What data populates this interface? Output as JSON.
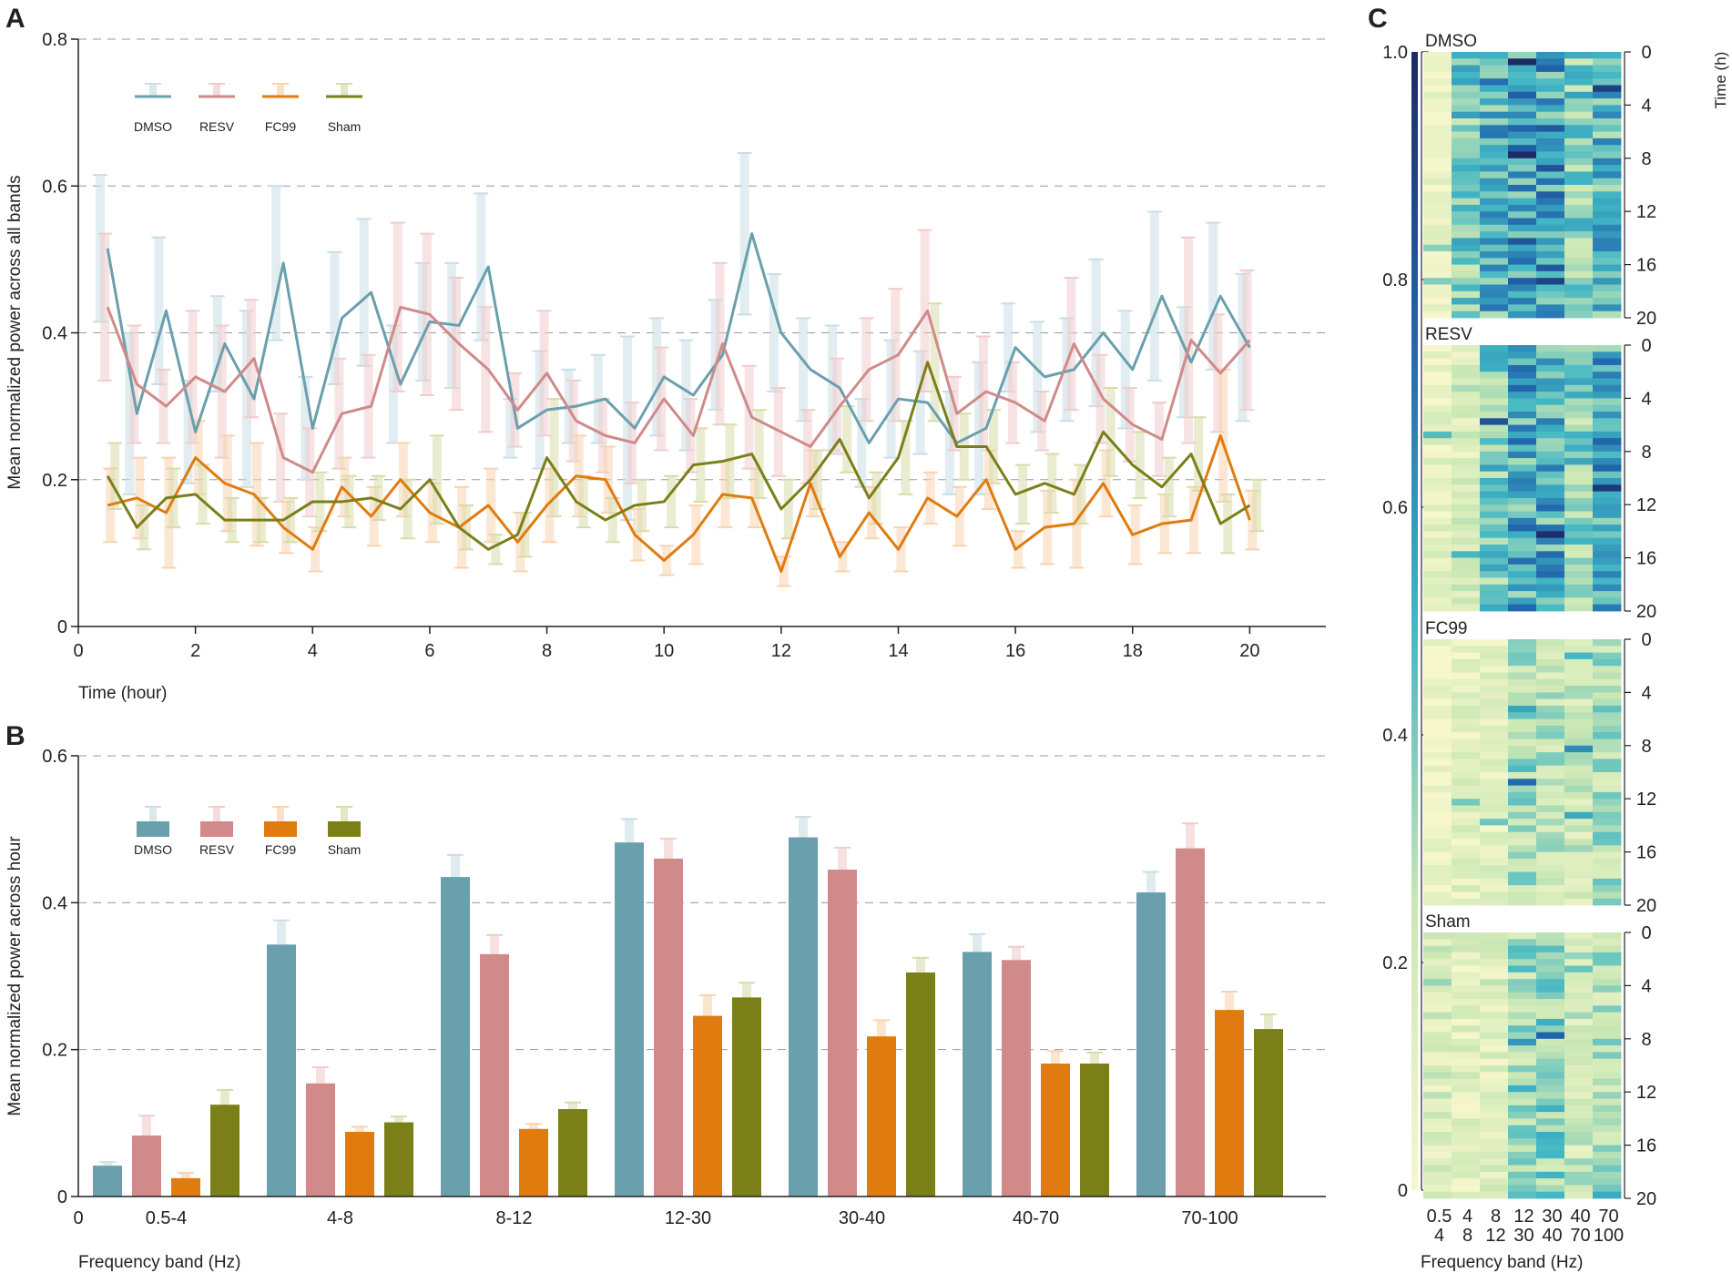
{
  "colors": {
    "DMSO": "#6a9fad",
    "RESV": "#d08a8a",
    "FC99": "#e07b10",
    "Sham": "#7a7f18",
    "DMSO_err": "#c9dfe5",
    "RESV_err": "#f1cccc",
    "FC99_err": "#f8d3ae",
    "Sham_err": "#d8dcab",
    "axis": "#222222",
    "grid": "#999999"
  },
  "panels": {
    "A": "A",
    "B": "B",
    "C": "C"
  },
  "chart_data": [
    {
      "panel": "A",
      "type": "line",
      "xlabel": "Time (hour)",
      "ylabel": "Mean normalized power across all bands",
      "xlim": [
        0,
        21.3
      ],
      "ylim": [
        0,
        0.8
      ],
      "xticks": [
        "0",
        "2",
        "4",
        "6",
        "8",
        "10",
        "12",
        "14",
        "16",
        "18",
        "20"
      ],
      "yticks": [
        "0",
        "0.2",
        "0.4",
        "0.6",
        "0.8"
      ],
      "x": [
        0.5,
        1,
        1.5,
        2,
        2.5,
        3,
        3.5,
        4,
        4.5,
        5,
        5.5,
        6,
        6.5,
        7,
        7.5,
        8,
        8.5,
        9,
        9.5,
        10,
        10.5,
        11,
        11.5,
        12,
        12.5,
        13,
        13.5,
        14,
        14.5,
        15,
        15.5,
        16,
        16.5,
        17,
        17.5,
        18,
        18.5,
        19,
        19.5,
        20
      ],
      "legend": [
        "DMSO",
        "RESV",
        "FC99",
        "Sham"
      ],
      "series": [
        {
          "name": "DMSO",
          "values": [
            0.515,
            0.29,
            0.43,
            0.265,
            0.385,
            0.31,
            0.495,
            0.27,
            0.42,
            0.455,
            0.33,
            0.415,
            0.41,
            0.49,
            0.27,
            0.295,
            0.3,
            0.31,
            0.27,
            0.34,
            0.315,
            0.37,
            0.535,
            0.4,
            0.35,
            0.325,
            0.25,
            0.31,
            0.305,
            0.25,
            0.27,
            0.38,
            0.34,
            0.35,
            0.4,
            0.35,
            0.45,
            0.36,
            0.45,
            0.38
          ],
          "err": [
            0.1,
            0.11,
            0.1,
            0.07,
            0.065,
            0.12,
            0.105,
            0.07,
            0.09,
            0.1,
            0.08,
            0.08,
            0.085,
            0.1,
            0.04,
            0.08,
            0.05,
            0.06,
            0.125,
            0.08,
            0.075,
            0.075,
            0.11,
            0.08,
            0.07,
            0.085,
            0.06,
            0.08,
            0.07,
            0.07,
            0.09,
            0.06,
            0.075,
            0.07,
            0.1,
            0.08,
            0.115,
            0.075,
            0.1,
            0.1
          ]
        },
        {
          "name": "RESV",
          "values": [
            0.435,
            0.33,
            0.3,
            0.34,
            0.32,
            0.365,
            0.23,
            0.21,
            0.29,
            0.3,
            0.435,
            0.425,
            0.385,
            0.35,
            0.295,
            0.345,
            0.28,
            0.26,
            0.25,
            0.31,
            0.26,
            0.385,
            0.285,
            0.265,
            0.245,
            0.3,
            0.35,
            0.37,
            0.43,
            0.29,
            0.32,
            0.305,
            0.28,
            0.385,
            0.31,
            0.275,
            0.255,
            0.39,
            0.345,
            0.39
          ],
          "err": [
            0.1,
            0.08,
            0.05,
            0.09,
            0.09,
            0.08,
            0.06,
            0.06,
            0.075,
            0.07,
            0.115,
            0.11,
            0.09,
            0.085,
            0.05,
            0.085,
            0.055,
            0.05,
            0.055,
            0.07,
            0.05,
            0.11,
            0.07,
            0.06,
            0.05,
            0.065,
            0.07,
            0.09,
            0.11,
            0.05,
            0.075,
            0.055,
            0.04,
            0.09,
            0.06,
            0.05,
            0.05,
            0.14,
            0.08,
            0.095
          ]
        },
        {
          "name": "FC99",
          "values": [
            0.165,
            0.175,
            0.155,
            0.23,
            0.195,
            0.18,
            0.135,
            0.105,
            0.19,
            0.15,
            0.2,
            0.155,
            0.135,
            0.165,
            0.115,
            0.165,
            0.205,
            0.2,
            0.125,
            0.09,
            0.125,
            0.18,
            0.175,
            0.075,
            0.195,
            0.095,
            0.155,
            0.105,
            0.175,
            0.15,
            0.2,
            0.105,
            0.135,
            0.14,
            0.195,
            0.125,
            0.14,
            0.145,
            0.26,
            0.145
          ],
          "err": [
            0.05,
            0.055,
            0.075,
            0.05,
            0.065,
            0.07,
            0.035,
            0.03,
            0.04,
            0.04,
            0.05,
            0.04,
            0.055,
            0.05,
            0.04,
            0.05,
            0.055,
            0.045,
            0.035,
            0.02,
            0.04,
            0.045,
            0.04,
            0.02,
            0.045,
            0.02,
            0.035,
            0.03,
            0.035,
            0.04,
            0.04,
            0.025,
            0.05,
            0.06,
            0.045,
            0.04,
            0.04,
            0.045,
            0.09,
            0.04
          ]
        },
        {
          "name": "Sham",
          "values": [
            0.205,
            0.135,
            0.175,
            0.18,
            0.145,
            0.145,
            0.145,
            0.17,
            0.17,
            0.175,
            0.16,
            0.2,
            0.135,
            0.105,
            0.125,
            0.23,
            0.17,
            0.145,
            0.165,
            0.17,
            0.22,
            0.225,
            0.235,
            0.16,
            0.2,
            0.255,
            0.175,
            0.23,
            0.36,
            0.245,
            0.245,
            0.18,
            0.195,
            0.18,
            0.265,
            0.22,
            0.19,
            0.235,
            0.14,
            0.165
          ],
          "err": [
            0.045,
            0.03,
            0.04,
            0.04,
            0.03,
            0.03,
            0.03,
            0.04,
            0.035,
            0.03,
            0.04,
            0.06,
            0.03,
            0.02,
            0.03,
            0.08,
            0.035,
            0.03,
            0.035,
            0.035,
            0.05,
            0.05,
            0.06,
            0.04,
            0.04,
            0.045,
            0.035,
            0.05,
            0.08,
            0.045,
            0.05,
            0.04,
            0.04,
            0.04,
            0.06,
            0.045,
            0.04,
            0.05,
            0.04,
            0.035
          ]
        }
      ]
    },
    {
      "panel": "B",
      "type": "bar",
      "xlabel": "Frequency band (Hz)",
      "ylabel": "Mean normalized power across hour",
      "ylim": [
        0,
        0.6
      ],
      "yticks": [
        "0",
        "0.2",
        "0.4",
        "0.6"
      ],
      "zero_label": "0",
      "categories": [
        "0.5-4",
        "4-8",
        "8-12",
        "12-30",
        "30-40",
        "40-70",
        "70-100"
      ],
      "legend": [
        "DMSO",
        "RESV",
        "FC99",
        "Sham"
      ],
      "series": [
        {
          "name": "DMSO",
          "values": [
            0.042,
            0.343,
            0.435,
            0.482,
            0.489,
            0.333,
            0.414
          ],
          "err": [
            0.005,
            0.033,
            0.03,
            0.032,
            0.028,
            0.024,
            0.028
          ]
        },
        {
          "name": "RESV",
          "values": [
            0.083,
            0.154,
            0.33,
            0.46,
            0.445,
            0.322,
            0.474
          ],
          "err": [
            0.027,
            0.022,
            0.026,
            0.027,
            0.03,
            0.018,
            0.034
          ]
        },
        {
          "name": "FC99",
          "values": [
            0.025,
            0.088,
            0.092,
            0.246,
            0.218,
            0.181,
            0.254
          ],
          "err": [
            0.007,
            0.007,
            0.007,
            0.028,
            0.022,
            0.017,
            0.025
          ]
        },
        {
          "name": "Sham",
          "values": [
            0.125,
            0.101,
            0.119,
            0.271,
            0.305,
            0.181,
            0.228
          ],
          "err": [
            0.02,
            0.008,
            0.009,
            0.02,
            0.02,
            0.015,
            0.02
          ]
        }
      ]
    },
    {
      "panel": "C",
      "type": "heatmap",
      "xlabel": "Frequency band (Hz)",
      "colorbar_ticks": [
        "0",
        "0.2",
        "0.4",
        "0.6",
        "0.8",
        "1.0"
      ],
      "colorbar_range": [
        0,
        1
      ],
      "right_ticks": [
        "0",
        "4",
        "8",
        "12",
        "16",
        "20"
      ],
      "right_axis_label": "Time (h)",
      "x_categories_top": [
        "0.5",
        "4",
        "8",
        "12",
        "30",
        "40",
        "70"
      ],
      "x_categories_bottom": [
        "4",
        "8",
        "12",
        "30",
        "40",
        "70",
        "100"
      ],
      "groups": [
        "DMSO",
        "RESV",
        "FC99",
        "Sham"
      ],
      "rows_per_group": 40,
      "column_means": {
        "DMSO": [
          0.04,
          0.34,
          0.44,
          0.48,
          0.49,
          0.33,
          0.41
        ],
        "RESV": [
          0.08,
          0.15,
          0.33,
          0.46,
          0.45,
          0.32,
          0.47
        ],
        "FC99": [
          0.03,
          0.09,
          0.09,
          0.25,
          0.22,
          0.18,
          0.25
        ],
        "Sham": [
          0.13,
          0.1,
          0.12,
          0.27,
          0.31,
          0.18,
          0.23
        ]
      }
    }
  ]
}
